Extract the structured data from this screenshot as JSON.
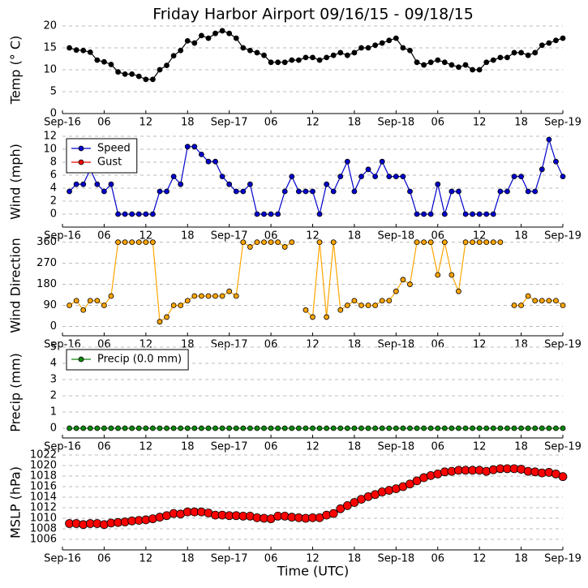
{
  "chart_data": [
    {
      "type": "line",
      "title": "Friday Harbor Airport 09/16/15 - 09/18/15",
      "ylabel": "Temp (° C)",
      "xlim": [
        0,
        72
      ],
      "xticks": [
        {
          "value": 0,
          "label": "Sep-16"
        },
        {
          "value": 6,
          "label": "06"
        },
        12,
        18,
        {
          "value": 24,
          "label": "Sep-17"
        },
        {
          "value": 30,
          "label": "06"
        },
        {
          "value": 36,
          "label": "12"
        },
        {
          "value": 42,
          "label": "18"
        },
        {
          "value": 48,
          "label": "Sep-18"
        },
        {
          "value": 54,
          "label": "06"
        },
        {
          "value": 60,
          "label": "12"
        },
        {
          "value": 66,
          "label": "18"
        },
        {
          "value": 72,
          "label": "Sep-19"
        }
      ],
      "ylim": [
        0,
        20
      ],
      "yticks": [
        0,
        5,
        10,
        15,
        20
      ],
      "grid": true,
      "x": [
        1,
        2,
        3,
        4,
        5,
        6,
        7,
        8,
        9,
        10,
        11,
        12,
        13,
        14,
        15,
        16,
        17,
        18,
        19,
        20,
        21,
        22,
        23,
        24,
        25,
        26,
        27,
        28,
        29,
        30,
        31,
        32,
        33,
        34,
        35,
        36,
        37,
        38,
        39,
        40,
        41,
        42,
        43,
        44,
        45,
        46,
        47,
        48,
        49,
        50,
        51,
        52,
        53,
        54,
        55,
        56,
        57,
        58,
        59,
        60,
        61,
        62,
        63,
        64,
        65,
        66,
        67,
        68,
        69,
        70,
        71,
        72
      ],
      "series": [
        {
          "name": "Temp",
          "color": "#000000",
          "values": [
            15,
            14.5,
            14.4,
            14,
            12.2,
            11.8,
            11.2,
            9.5,
            9,
            9,
            8.5,
            7.8,
            7.8,
            10,
            11,
            13.2,
            14.4,
            16.6,
            16.1,
            17.8,
            17.2,
            18.3,
            18.9,
            18.3,
            17.2,
            15,
            14.4,
            13.9,
            13.3,
            11.7,
            11.7,
            11.7,
            12.2,
            12.2,
            12.8,
            12.8,
            12.2,
            12.8,
            13.3,
            13.9,
            13.3,
            13.9,
            15,
            15,
            15.6,
            16.1,
            16.7,
            17.2,
            15,
            14.4,
            11.7,
            11.1,
            11.7,
            12.2,
            11.7,
            11.1,
            10.6,
            11.1,
            10,
            10,
            11.7,
            12.2,
            12.8,
            12.8,
            13.9,
            13.9,
            13.3,
            13.9,
            15.6,
            16.1,
            16.7,
            17.2
          ]
        }
      ]
    },
    {
      "type": "line",
      "ylabel": "Wind (mph)",
      "legend": "upper left",
      "xlim": [
        0,
        72
      ],
      "xticks": [
        {
          "value": 0,
          "label": "Sep-16"
        },
        {
          "value": 6,
          "label": "06"
        },
        12,
        18,
        {
          "value": 24,
          "label": "Sep-17"
        },
        {
          "value": 30,
          "label": "06"
        },
        {
          "value": 36,
          "label": "12"
        },
        {
          "value": 42,
          "label": "18"
        },
        {
          "value": 48,
          "label": "Sep-18"
        },
        {
          "value": 54,
          "label": "06"
        },
        {
          "value": 60,
          "label": "12"
        },
        {
          "value": 66,
          "label": "18"
        },
        {
          "value": 72,
          "label": "Sep-19"
        }
      ],
      "ylim": [
        -2,
        12
      ],
      "yticks": [
        0,
        2,
        4,
        6,
        8,
        10,
        12
      ],
      "grid": true,
      "x": [
        1,
        2,
        3,
        4,
        5,
        6,
        7,
        8,
        9,
        10,
        11,
        12,
        13,
        14,
        15,
        16,
        17,
        18,
        19,
        20,
        21,
        22,
        23,
        24,
        25,
        26,
        27,
        28,
        29,
        30,
        31,
        32,
        33,
        34,
        35,
        36,
        37,
        38,
        39,
        40,
        41,
        42,
        43,
        44,
        45,
        46,
        47,
        48,
        49,
        50,
        51,
        52,
        53,
        54,
        55,
        56,
        57,
        58,
        59,
        60,
        61,
        62,
        63,
        64,
        65,
        66,
        67,
        68,
        69,
        70,
        71,
        72
      ],
      "series": [
        {
          "name": "Speed",
          "color": "#0000cc",
          "values": [
            3.5,
            4.6,
            4.6,
            6.9,
            4.6,
            3.5,
            4.6,
            0,
            0,
            0,
            0,
            0,
            0,
            3.5,
            3.5,
            5.8,
            4.6,
            10.4,
            10.4,
            9.2,
            8.1,
            8.1,
            5.8,
            4.6,
            3.5,
            3.5,
            4.6,
            0,
            0,
            0,
            0,
            3.5,
            5.8,
            3.5,
            3.5,
            3.5,
            0,
            4.6,
            3.5,
            5.8,
            8.1,
            3.5,
            5.8,
            6.9,
            5.8,
            8.1,
            5.8,
            5.8,
            5.8,
            3.5,
            0,
            0,
            0,
            4.6,
            0,
            3.5,
            3.5,
            0,
            0,
            0,
            0,
            0,
            3.5,
            3.5,
            5.8,
            5.8,
            3.5,
            3.5,
            6.9,
            11.5,
            8.1,
            5.8
          ]
        },
        {
          "name": "Gust",
          "color": "#ee0000",
          "values": [
            null,
            null,
            null,
            null,
            null,
            null,
            null,
            null,
            null,
            null,
            null,
            null,
            null,
            null,
            null,
            null,
            null,
            null,
            null,
            null,
            null,
            null,
            null,
            null,
            null,
            null,
            null,
            null,
            null,
            null,
            null,
            null,
            null,
            null,
            null,
            null,
            null,
            null,
            null,
            null,
            null,
            null,
            null,
            null,
            null,
            null,
            null,
            null,
            null,
            null,
            null,
            null,
            null,
            null,
            null,
            null,
            null,
            null,
            null,
            null,
            null,
            null,
            null,
            null,
            null,
            null,
            null,
            null,
            null,
            null,
            null,
            null
          ]
        }
      ]
    },
    {
      "type": "line",
      "ylabel": "Wind Direction",
      "xlim": [
        0,
        72
      ],
      "xticks": [
        {
          "value": 0,
          "label": "Sep-16"
        },
        {
          "value": 6,
          "label": "06"
        },
        12,
        18,
        {
          "value": 24,
          "label": "Sep-17"
        },
        {
          "value": 30,
          "label": "06"
        },
        {
          "value": 36,
          "label": "12"
        },
        {
          "value": 42,
          "label": "18"
        },
        {
          "value": 48,
          "label": "Sep-18"
        },
        {
          "value": 54,
          "label": "06"
        },
        {
          "value": 60,
          "label": "12"
        },
        {
          "value": 66,
          "label": "18"
        },
        {
          "value": 72,
          "label": "Sep-19"
        }
      ],
      "ylim": [
        -40,
        390
      ],
      "yticks": [
        0,
        90,
        180,
        270,
        360
      ],
      "grid": true,
      "x": [
        1,
        2,
        3,
        4,
        5,
        6,
        7,
        8,
        9,
        10,
        11,
        12,
        13,
        14,
        15,
        16,
        17,
        18,
        19,
        20,
        21,
        22,
        23,
        24,
        25,
        26,
        27,
        28,
        29,
        30,
        31,
        32,
        33,
        34,
        35,
        36,
        37,
        38,
        39,
        40,
        41,
        42,
        43,
        44,
        45,
        46,
        47,
        48,
        49,
        50,
        51,
        52,
        53,
        54,
        55,
        56,
        57,
        58,
        59,
        60,
        61,
        62,
        63,
        64,
        65,
        66,
        67,
        68,
        69,
        70,
        71,
        72
      ],
      "series": [
        {
          "name": "Direction",
          "color": "#ffa500",
          "values": [
            90,
            110,
            70,
            110,
            110,
            90,
            130,
            360,
            360,
            360,
            360,
            360,
            360,
            20,
            40,
            90,
            90,
            110,
            130,
            130,
            130,
            130,
            130,
            150,
            130,
            360,
            340,
            360,
            360,
            360,
            360,
            340,
            360,
            null,
            70,
            40,
            360,
            40,
            360,
            70,
            90,
            110,
            90,
            90,
            90,
            110,
            110,
            150,
            200,
            180,
            360,
            360,
            360,
            220,
            360,
            220,
            150,
            360,
            360,
            360,
            360,
            360,
            360,
            null,
            90,
            90,
            130,
            110,
            110,
            110,
            110,
            90
          ]
        }
      ]
    },
    {
      "type": "line",
      "ylabel": "Precip (mm)",
      "legend": "upper left",
      "xlim": [
        0,
        72
      ],
      "xticks": [
        {
          "value": 0,
          "label": "Sep-16"
        },
        {
          "value": 6,
          "label": "06"
        },
        12,
        18,
        {
          "value": 24,
          "label": "Sep-17"
        },
        {
          "value": 30,
          "label": "06"
        },
        {
          "value": 36,
          "label": "12"
        },
        {
          "value": 42,
          "label": "18"
        },
        {
          "value": 48,
          "label": "Sep-18"
        },
        {
          "value": 54,
          "label": "06"
        },
        {
          "value": 60,
          "label": "12"
        },
        {
          "value": 66,
          "label": "18"
        },
        {
          "value": 72,
          "label": "Sep-19"
        }
      ],
      "ylim": [
        -0.6,
        5
      ],
      "yticks": [
        0,
        1,
        2,
        3,
        4,
        5
      ],
      "grid": true,
      "x": [
        1,
        2,
        3,
        4,
        5,
        6,
        7,
        8,
        9,
        10,
        11,
        12,
        13,
        14,
        15,
        16,
        17,
        18,
        19,
        20,
        21,
        22,
        23,
        24,
        25,
        26,
        27,
        28,
        29,
        30,
        31,
        32,
        33,
        34,
        35,
        36,
        37,
        38,
        39,
        40,
        41,
        42,
        43,
        44,
        45,
        46,
        47,
        48,
        49,
        50,
        51,
        52,
        53,
        54,
        55,
        56,
        57,
        58,
        59,
        60,
        61,
        62,
        63,
        64,
        65,
        66,
        67,
        68,
        69,
        70,
        71,
        72
      ],
      "series": [
        {
          "name": "Precip (0.0 mm)",
          "color": "#118811",
          "values": [
            0,
            0,
            0,
            0,
            0,
            0,
            0,
            0,
            0,
            0,
            0,
            0,
            0,
            0,
            0,
            0,
            0,
            0,
            0,
            0,
            0,
            0,
            0,
            0,
            0,
            0,
            0,
            0,
            0,
            0,
            0,
            0,
            0,
            0,
            0,
            0,
            0,
            0,
            0,
            0,
            0,
            0,
            0,
            0,
            0,
            0,
            0,
            0,
            0,
            0,
            0,
            0,
            0,
            0,
            0,
            0,
            0,
            0,
            0,
            0,
            0,
            0,
            0,
            0,
            0,
            0,
            0,
            0,
            0,
            0,
            0,
            0
          ]
        }
      ]
    },
    {
      "type": "line",
      "ylabel": "MSLP (hPa)",
      "xlabel": "Time (UTC)",
      "xlim": [
        0,
        72
      ],
      "xticks": [
        {
          "value": 0,
          "label": "Sep-16"
        },
        {
          "value": 6,
          "label": "06"
        },
        12,
        18,
        {
          "value": 24,
          "label": "Sep-17"
        },
        {
          "value": 30,
          "label": "06"
        },
        {
          "value": 36,
          "label": "12"
        },
        {
          "value": 42,
          "label": "18"
        },
        {
          "value": 48,
          "label": "Sep-18"
        },
        {
          "value": 54,
          "label": "06"
        },
        {
          "value": 60,
          "label": "12"
        },
        {
          "value": 66,
          "label": "18"
        },
        {
          "value": 72,
          "label": "Sep-19"
        }
      ],
      "ylim": [
        1004,
        1022
      ],
      "yticks": [
        1006,
        1008,
        1010,
        1012,
        1014,
        1016,
        1018,
        1020,
        1022
      ],
      "grid": true,
      "x": [
        1,
        2,
        3,
        4,
        5,
        6,
        7,
        8,
        9,
        10,
        11,
        12,
        13,
        14,
        15,
        16,
        17,
        18,
        19,
        20,
        21,
        22,
        23,
        24,
        25,
        26,
        27,
        28,
        29,
        30,
        31,
        32,
        33,
        34,
        35,
        36,
        37,
        38,
        39,
        40,
        41,
        42,
        43,
        44,
        45,
        46,
        47,
        48,
        49,
        50,
        51,
        52,
        53,
        54,
        55,
        56,
        57,
        58,
        59,
        60,
        61,
        62,
        63,
        64,
        65,
        66,
        67,
        68,
        69,
        70,
        71,
        72
      ],
      "series": [
        {
          "name": "MSLP",
          "color": "#ff0000",
          "values": [
            1009,
            1009,
            1008.8,
            1009,
            1009,
            1008.8,
            1009.1,
            1009.2,
            1009.3,
            1009.5,
            1009.6,
            1009.7,
            1009.9,
            1010.2,
            1010.5,
            1010.9,
            1010.8,
            1011.2,
            1011.2,
            1011.2,
            1011,
            1010.6,
            1010.6,
            1010.5,
            1010.5,
            1010.4,
            1010.4,
            1010.1,
            1010,
            1009.9,
            1010.4,
            1010.4,
            1010.2,
            1010.1,
            1010,
            1010.1,
            1010.1,
            1010.6,
            1010.9,
            1011.8,
            1012.4,
            1013,
            1013.6,
            1014.1,
            1014.5,
            1015,
            1015.3,
            1015.6,
            1016,
            1016.5,
            1017.1,
            1017.7,
            1018.1,
            1018.4,
            1018.8,
            1018.9,
            1019.1,
            1019.1,
            1019.1,
            1019.1,
            1018.9,
            1019.2,
            1019.4,
            1019.4,
            1019.4,
            1019.3,
            1018.9,
            1018.8,
            1018.6,
            1018.7,
            1018.4,
            1017.9
          ]
        }
      ]
    }
  ]
}
